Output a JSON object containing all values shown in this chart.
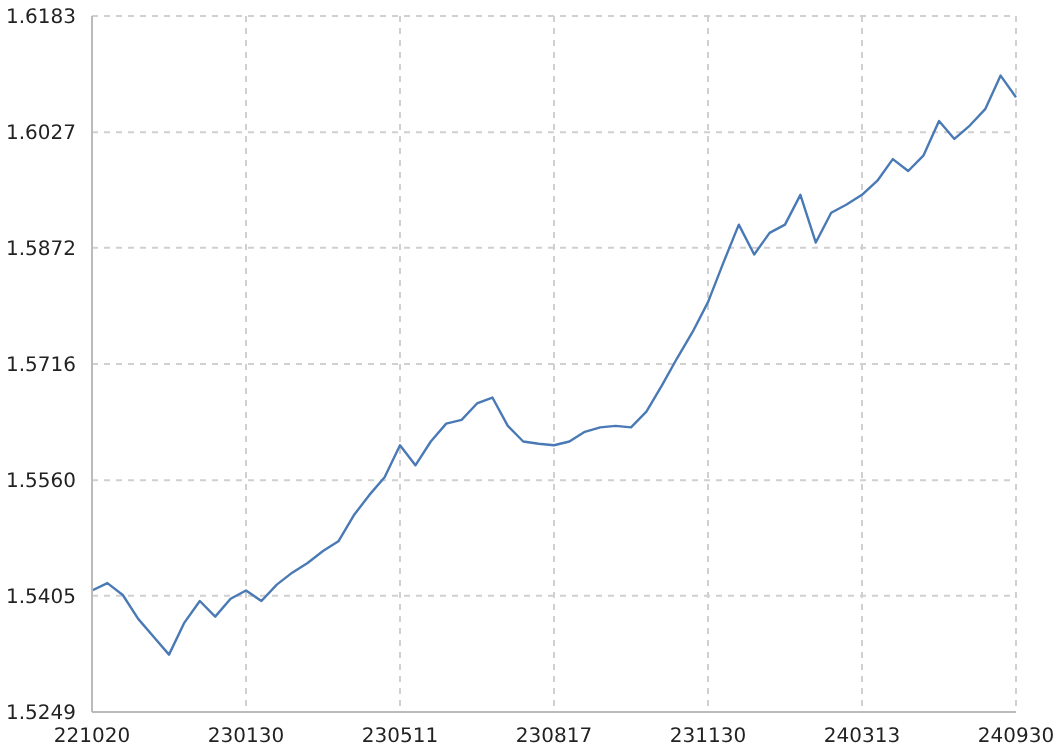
{
  "chart_data": {
    "type": "line",
    "categories": [
      "221020",
      null,
      null,
      null,
      null,
      null,
      null,
      null,
      null,
      null,
      "230130",
      null,
      null,
      null,
      null,
      null,
      null,
      null,
      null,
      null,
      "230511",
      null,
      null,
      null,
      null,
      null,
      null,
      null,
      null,
      null,
      "230817",
      null,
      null,
      null,
      null,
      null,
      null,
      null,
      null,
      null,
      "231130",
      null,
      null,
      null,
      null,
      null,
      null,
      null,
      null,
      null,
      "240313",
      null,
      null,
      null,
      null,
      null,
      null,
      null,
      null,
      null,
      "240930"
    ],
    "series": [
      {
        "color": "#4a7ab5",
        "values": [
          1.5412,
          1.5422,
          1.5406,
          1.5374,
          1.535,
          1.5326,
          1.5369,
          1.5398,
          1.5377,
          1.5401,
          1.5412,
          1.5398,
          1.542,
          1.5436,
          1.5449,
          1.5465,
          1.5478,
          1.5513,
          1.554,
          1.5564,
          1.5607,
          1.558,
          1.5612,
          1.5636,
          1.5641,
          1.5663,
          1.5671,
          1.5633,
          1.5612,
          1.5609,
          1.5607,
          1.5612,
          1.5625,
          1.5631,
          1.5633,
          1.5631,
          1.5652,
          1.5687,
          1.5724,
          1.5759,
          1.5799,
          1.5852,
          1.5903,
          1.5863,
          1.5892,
          1.5903,
          1.5943,
          1.5879,
          1.5919,
          1.593,
          1.5943,
          1.5962,
          1.5991,
          1.5975,
          1.5996,
          1.6042,
          1.6018,
          1.6036,
          1.6058,
          1.6103,
          1.6074
        ]
      }
    ],
    "ylim": [
      1.5249,
      1.6183
    ],
    "yticks": [
      1.5249,
      1.5405,
      {
        "value": 1.556,
        "label": "1.5560"
      },
      1.5716,
      1.5872,
      1.6027,
      1.6183
    ],
    "grid": true,
    "legend": false,
    "marker": "none",
    "line_style": "solid"
  }
}
